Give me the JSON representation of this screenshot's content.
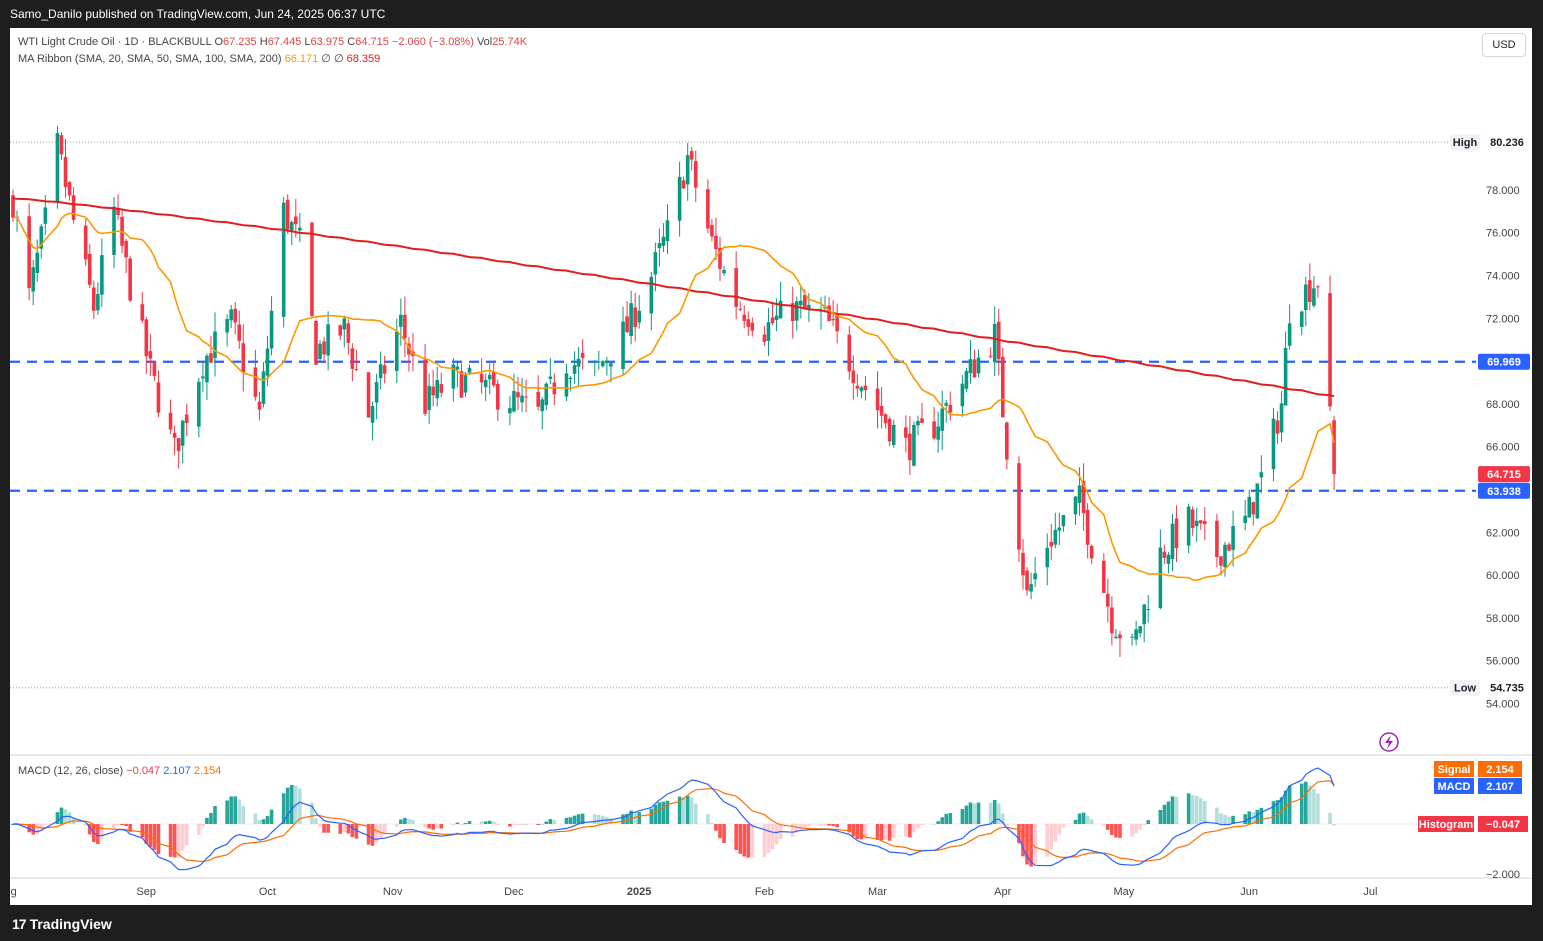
{
  "header": {
    "publisher_line": "Samo_Danilo published on TradingView.com, Jun 24, 2025 06:37 UTC"
  },
  "legend": {
    "symbol": "WTI Light Crude Oil · 1D · BLACKBULL",
    "open_label": "O",
    "open": "67.235",
    "high_label": "H",
    "high": "67.445",
    "low_label": "L",
    "low": "63.975",
    "close_label": "C",
    "close": "64.715",
    "change": "−2.060 (−3.08%)",
    "vol_label": "Vol",
    "vol": "25.74K",
    "ma_ribbon": "MA Ribbon (SMA, 20, SMA, 50, SMA, 100, SMA, 200)",
    "ma20_value": "66.171",
    "ma_empty_1": "∅",
    "ma_empty_2": "∅",
    "ma200_value": "68.359",
    "macd_title": "MACD (12, 26, close)",
    "macd_hist": "−0.047",
    "macd_line": "2.107",
    "macd_signal": "2.154"
  },
  "currency_button": "USD",
  "price_axis": {
    "ticks": [
      "78.000",
      "76.000",
      "74.000",
      "72.000",
      "70.000",
      "68.000",
      "66.000",
      "64.000",
      "62.000",
      "60.000",
      "58.000",
      "56.000",
      "54.000"
    ],
    "high_label": "High",
    "high_value": "80.236",
    "low_label": "Low",
    "low_value": "54.735",
    "current_price": "64.715",
    "level_upper": "69.969",
    "level_lower": "63.938"
  },
  "macd_axis": {
    "tick": "−2.000",
    "signal_label": "Signal",
    "signal_value": "2.154",
    "macd_label": "MACD",
    "macd_value": "2.107",
    "hist_label": "Histogram",
    "hist_value": "−0.047"
  },
  "time_axis": [
    "Aug",
    "Sep",
    "Oct",
    "Nov",
    "Dec",
    "2025",
    "Feb",
    "Mar",
    "Apr",
    "May",
    "Jun",
    "Jul"
  ],
  "footer": {
    "brand": "TradingView"
  },
  "colors": {
    "up": "#089981",
    "down": "#f23645",
    "ma20": "#ff9800",
    "ma200": "#e01e1e",
    "level": "#2962ff",
    "macd": "#2962ff",
    "signal": "#ff6d00",
    "hist_up_strong": "#26a69a",
    "hist_up_weak": "#b2dfdb",
    "hist_down_strong": "#ff5252",
    "hist_down_weak": "#ffcdd2"
  },
  "chart_data": {
    "type": "candlestick",
    "title": "WTI Light Crude Oil · 1D · BLACKBULL",
    "x_range": [
      "2024-08-01",
      "2025-06-24"
    ],
    "y_range": [
      53.6,
      82.2
    ],
    "price_high": 80.236,
    "price_low": 54.735,
    "horizontal_levels": [
      69.969,
      63.938
    ],
    "ohlc_anchors": [
      {
        "date": "2024-08-01",
        "close": 77.5
      },
      {
        "date": "2024-08-05",
        "close": 73.0
      },
      {
        "date": "2024-08-09",
        "close": 76.5
      },
      {
        "date": "2024-08-12",
        "close": 80.0
      },
      {
        "date": "2024-08-16",
        "close": 76.5
      },
      {
        "date": "2024-08-21",
        "close": 72.5
      },
      {
        "date": "2024-08-26",
        "close": 77.0
      },
      {
        "date": "2024-08-30",
        "close": 73.5
      },
      {
        "date": "2024-09-04",
        "close": 69.5
      },
      {
        "date": "2024-09-10",
        "close": 65.8
      },
      {
        "date": "2024-09-17",
        "close": 70.0
      },
      {
        "date": "2024-09-24",
        "close": 71.8
      },
      {
        "date": "2024-10-01",
        "close": 67.5
      },
      {
        "date": "2024-10-07",
        "close": 77.0
      },
      {
        "date": "2024-10-11",
        "close": 75.5
      },
      {
        "date": "2024-10-15",
        "close": 70.5
      },
      {
        "date": "2024-10-22",
        "close": 71.5
      },
      {
        "date": "2024-10-28",
        "close": 67.5
      },
      {
        "date": "2024-11-05",
        "close": 71.8
      },
      {
        "date": "2024-11-11",
        "close": 68.0
      },
      {
        "date": "2024-11-18",
        "close": 69.2
      },
      {
        "date": "2024-11-25",
        "close": 68.8
      },
      {
        "date": "2024-12-02",
        "close": 68.2
      },
      {
        "date": "2024-12-09",
        "close": 67.5
      },
      {
        "date": "2024-12-16",
        "close": 70.0
      },
      {
        "date": "2024-12-23",
        "close": 69.5
      },
      {
        "date": "2024-12-31",
        "close": 71.5
      },
      {
        "date": "2025-01-06",
        "close": 74.0
      },
      {
        "date": "2025-01-10",
        "close": 76.0
      },
      {
        "date": "2025-01-15",
        "close": 79.5
      },
      {
        "date": "2025-01-21",
        "close": 75.5
      },
      {
        "date": "2025-01-27",
        "close": 72.8
      },
      {
        "date": "2025-02-03",
        "close": 71.5
      },
      {
        "date": "2025-02-10",
        "close": 72.5
      },
      {
        "date": "2025-02-18",
        "close": 72.0
      },
      {
        "date": "2025-02-24",
        "close": 70.0
      },
      {
        "date": "2025-03-04",
        "close": 67.5
      },
      {
        "date": "2025-03-10",
        "close": 66.0
      },
      {
        "date": "2025-03-17",
        "close": 67.0
      },
      {
        "date": "2025-03-24",
        "close": 69.0
      },
      {
        "date": "2025-04-01",
        "close": 71.2
      },
      {
        "date": "2025-04-04",
        "close": 66.0
      },
      {
        "date": "2025-04-09",
        "close": 59.0
      },
      {
        "date": "2025-04-14",
        "close": 61.5
      },
      {
        "date": "2025-04-22",
        "close": 63.5
      },
      {
        "date": "2025-04-30",
        "close": 58.0
      },
      {
        "date": "2025-05-05",
        "close": 56.5
      },
      {
        "date": "2025-05-12",
        "close": 61.0
      },
      {
        "date": "2025-05-19",
        "close": 62.5
      },
      {
        "date": "2025-05-26",
        "close": 61.0
      },
      {
        "date": "2025-06-02",
        "close": 62.5
      },
      {
        "date": "2025-06-06",
        "close": 64.5
      },
      {
        "date": "2025-06-11",
        "close": 68.0
      },
      {
        "date": "2025-06-13",
        "close": 72.5
      },
      {
        "date": "2025-06-18",
        "close": 73.5
      },
      {
        "date": "2025-06-20",
        "close": 73.8
      },
      {
        "date": "2025-06-23",
        "close": 67.2
      },
      {
        "date": "2025-06-24",
        "close": 64.715
      }
    ],
    "last_candle": {
      "date": "2025-06-24",
      "open": 67.235,
      "high": 67.445,
      "low": 63.975,
      "close": 64.715
    },
    "series": [
      {
        "name": "SMA 20",
        "last": 66.171
      },
      {
        "name": "SMA 200",
        "last": 68.359
      }
    ],
    "macd": {
      "title": "MACD (12, 26, close)",
      "macd": 2.107,
      "signal": 2.154,
      "histogram": -0.047
    }
  }
}
